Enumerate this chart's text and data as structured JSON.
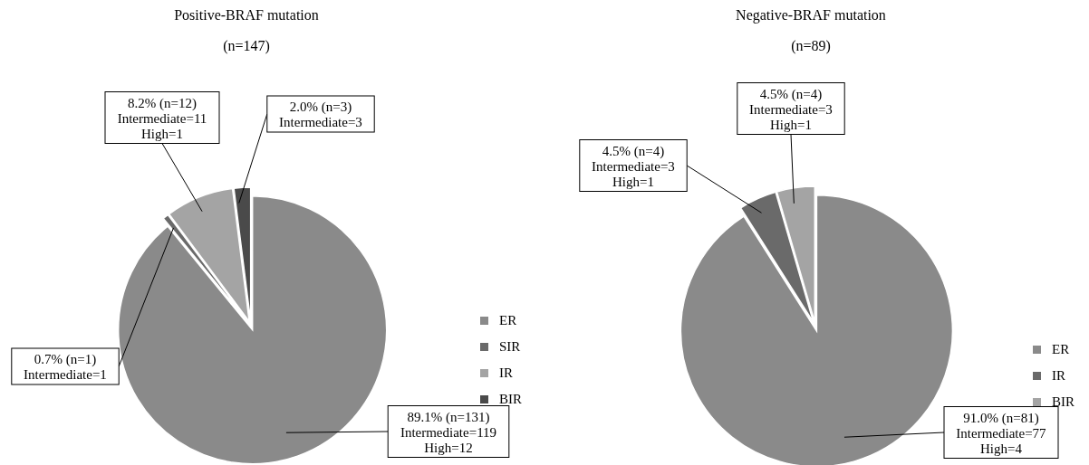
{
  "chart_data": [
    {
      "type": "pie",
      "title": "Positive-BRAF mutation",
      "subtitle": "(n=147)",
      "categories": [
        "ER",
        "SIR",
        "IR",
        "BIR"
      ],
      "values": [
        89.1,
        0.7,
        8.2,
        2.0
      ],
      "colors": [
        "#8a8a8a",
        "#6a6a6a",
        "#a4a4a4",
        "#4a4a4a"
      ],
      "value_labels": [
        "89.1% (n=131)\nIntermediate=119\nHigh=12",
        "0.7% (n=1)\nIntermediate=1",
        "8.2% (n=12)\nIntermediate=11\nHigh=1",
        "2.0% (n=3)\nIntermediate=3"
      ],
      "legend": "right"
    },
    {
      "type": "pie",
      "title": "Negative-BRAF mutation",
      "subtitle": "(n=89)",
      "categories": [
        "ER",
        "IR",
        "BIR"
      ],
      "values": [
        91.0,
        4.5,
        4.5
      ],
      "colors": [
        "#8a8a8a",
        "#6a6a6a",
        "#a4a4a4"
      ],
      "value_labels": [
        "91.0% (n=81)\nIntermediate=77\nHigh=4",
        "4.5% (n=4)\nIntermediate=3\nHigh=1",
        "4.5% (n=4)\nIntermediate=3\nHigh=1"
      ],
      "legend": "right"
    }
  ]
}
